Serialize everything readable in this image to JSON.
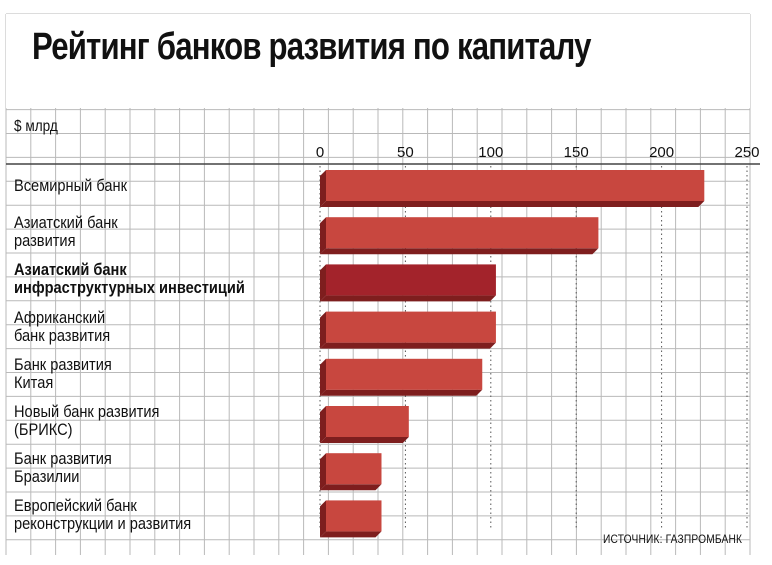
{
  "header": {
    "title": "Рейтинг банков развития по капиталу"
  },
  "unit_label": "$ млрд",
  "source": "ИСТОЧНИК: ГАЗПРОМБАНК",
  "colors": {
    "bar": "#c8473f",
    "bar_highlight": "#a3232b",
    "bar_dark": "#7e1e1e",
    "grid": "#b9b9b9"
  },
  "chart_data": {
    "type": "bar",
    "orientation": "horizontal",
    "categories": [
      "Всемирный банк",
      "Азиатский банк\nразвития",
      "Азиатский банк\nинфраструктурных инвестиций",
      "Африканский\nбанк развития",
      "Банк развития\nКитая",
      "Новый банк развития\n(БРИКС)",
      "Банк развития\nБразилии",
      "Европейский банк\nреконструкции и развития"
    ],
    "values": [
      225,
      163,
      103,
      103,
      95,
      52,
      36,
      36
    ],
    "highlight_index": 2,
    "xlim": [
      0,
      250
    ],
    "xticks": [
      "0",
      "50",
      "100",
      "150",
      "200",
      "250"
    ],
    "ylabel": "$ млрд",
    "grid": true
  }
}
